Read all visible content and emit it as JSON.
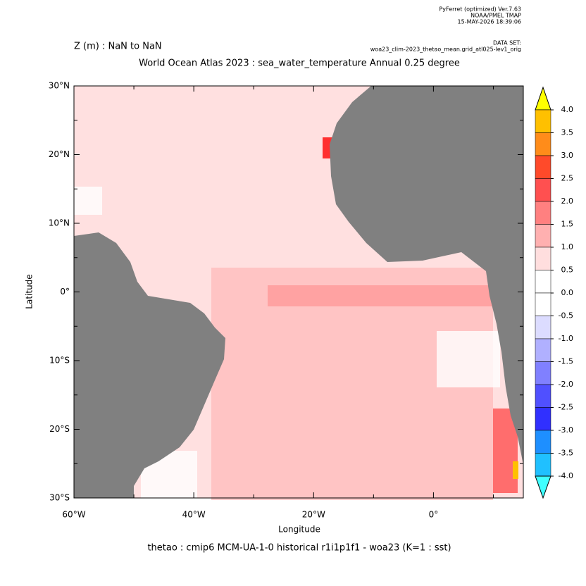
{
  "header": {
    "software": "PyFerret (optimized) Ver.7.63",
    "org": "NOAA/PMEL TMAP",
    "timestamp": "15-MAY-2026 18:39:06",
    "dataset_label": "DATA SET:",
    "dataset": "woa23_clim-2023_thetao_mean.grid_atl025-lev1_orig"
  },
  "title": {
    "depth": "Z (m) : NaN to NaN",
    "main": "World Ocean Atlas 2023 : sea_water_temperature Annual  0.25 degree"
  },
  "map": {
    "xlabel": "Longitude",
    "ylabel": "Latitude",
    "xlim": [
      -60,
      15
    ],
    "ylim": [
      -30,
      30
    ],
    "xticks": [
      {
        "value": -60,
        "label": "60°W"
      },
      {
        "value": -40,
        "label": "40°W"
      },
      {
        "value": -20,
        "label": "20°W"
      },
      {
        "value": 0,
        "label": "0°"
      }
    ],
    "xminor": [
      -50,
      -30,
      -10,
      10
    ],
    "yticks": [
      {
        "value": 30,
        "label": "30°N"
      },
      {
        "value": 20,
        "label": "20°N"
      },
      {
        "value": 10,
        "label": "10°N"
      },
      {
        "value": 0,
        "label": "0°"
      },
      {
        "value": -10,
        "label": "10°S"
      },
      {
        "value": -20,
        "label": "20°S"
      },
      {
        "value": -30,
        "label": "30°S"
      }
    ],
    "yminor": [
      25,
      15,
      5,
      -5,
      -15,
      -25
    ],
    "caption": "thetao : cmip6 MCM-UA-1-0 historical r1i1p1f1 - woa23  (K=1 : sst)"
  },
  "colorbar": {
    "levels": [
      {
        "value": 4,
        "label": "4.0"
      },
      {
        "value": 3.5,
        "label": "3.5"
      },
      {
        "value": 3,
        "label": "3.0"
      },
      {
        "value": 2.5,
        "label": "2.5"
      },
      {
        "value": 2,
        "label": "2.0"
      },
      {
        "value": 1.5,
        "label": "1.5"
      },
      {
        "value": 1,
        "label": "1.0"
      },
      {
        "value": 0.5,
        "label": "0.5"
      },
      {
        "value": 0,
        "label": "0.0"
      },
      {
        "value": -0.5,
        "label": "-0.5"
      },
      {
        "value": -1,
        "label": "-1.0"
      },
      {
        "value": -1.5,
        "label": "-1.5"
      },
      {
        "value": -2,
        "label": "-2.0"
      },
      {
        "value": -2.5,
        "label": "-2.5"
      },
      {
        "value": -3,
        "label": "-3.0"
      },
      {
        "value": -3.5,
        "label": "-3.5"
      },
      {
        "value": -4,
        "label": "-4.0"
      }
    ],
    "colors": [
      "#ffff00",
      "#ffc000",
      "#ff8c1a",
      "#ff4a2a",
      "#ff5050",
      "#ff8080",
      "#ffb0b0",
      "#ffdede",
      "#ffffff",
      "#ffffff",
      "#dcdcff",
      "#b0b0ff",
      "#8080ff",
      "#5050ff",
      "#3030ff",
      "#1e8fff",
      "#20c0ff",
      "#40ffff"
    ]
  }
}
